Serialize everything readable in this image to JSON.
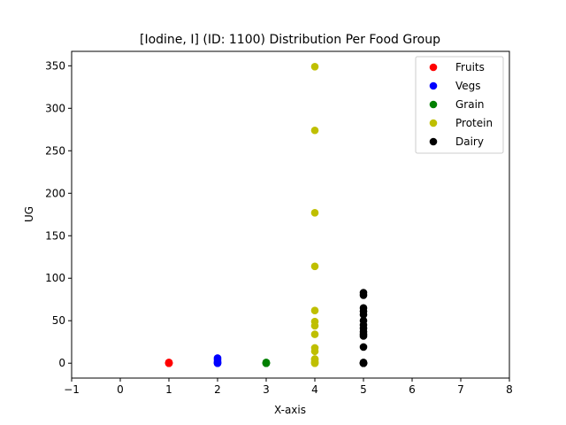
{
  "chart_data": {
    "type": "scatter",
    "title": "[Iodine, I] (ID: 1100) Distribution Per Food Group",
    "xlabel": "X-axis",
    "ylabel": "UG",
    "xlim": [
      -1,
      8
    ],
    "ylim": [
      -17.5,
      367
    ],
    "xticks": [
      -1,
      0,
      1,
      2,
      3,
      4,
      5,
      6,
      7,
      8
    ],
    "xtick_labels": [
      "−1",
      "0",
      "1",
      "2",
      "3",
      "4",
      "5",
      "6",
      "7",
      "8"
    ],
    "yticks": [
      0,
      50,
      100,
      150,
      200,
      250,
      300,
      350
    ],
    "ytick_labels": [
      "0",
      "50",
      "100",
      "150",
      "200",
      "250",
      "300",
      "350"
    ],
    "grid": false,
    "legend_position": "top-right",
    "series": [
      {
        "name": "Fruits",
        "color": "#ff0000",
        "x": [
          1,
          1,
          1,
          1,
          1
        ],
        "y": [
          0,
          0,
          0,
          1,
          0.5
        ]
      },
      {
        "name": "Vegs",
        "color": "#0000ff",
        "x": [
          2,
          2,
          2,
          2,
          2,
          2
        ],
        "y": [
          0,
          0,
          1,
          2,
          4,
          6
        ]
      },
      {
        "name": "Grain",
        "color": "#008000",
        "x": [
          3,
          3,
          3,
          3,
          3
        ],
        "y": [
          0,
          0,
          0.5,
          1,
          0
        ]
      },
      {
        "name": "Protein",
        "color": "#bfbf00",
        "x": [
          4,
          4,
          4,
          4,
          4,
          4,
          4,
          4,
          4,
          4,
          4,
          4,
          4,
          4,
          4,
          4
        ],
        "y": [
          349,
          274,
          177,
          114,
          62,
          49,
          44,
          34,
          18,
          14,
          5,
          4,
          2,
          1,
          0,
          0
        ]
      },
      {
        "name": "Dairy",
        "color": "#000000",
        "x": [
          5,
          5,
          5,
          5,
          5,
          5,
          5,
          5,
          5,
          5,
          5,
          5,
          5,
          5,
          5,
          5,
          5,
          5
        ],
        "y": [
          83,
          80,
          65,
          61,
          57,
          50,
          45,
          41,
          37,
          34,
          32,
          19,
          1,
          0,
          0,
          0,
          0,
          0
        ]
      }
    ]
  }
}
